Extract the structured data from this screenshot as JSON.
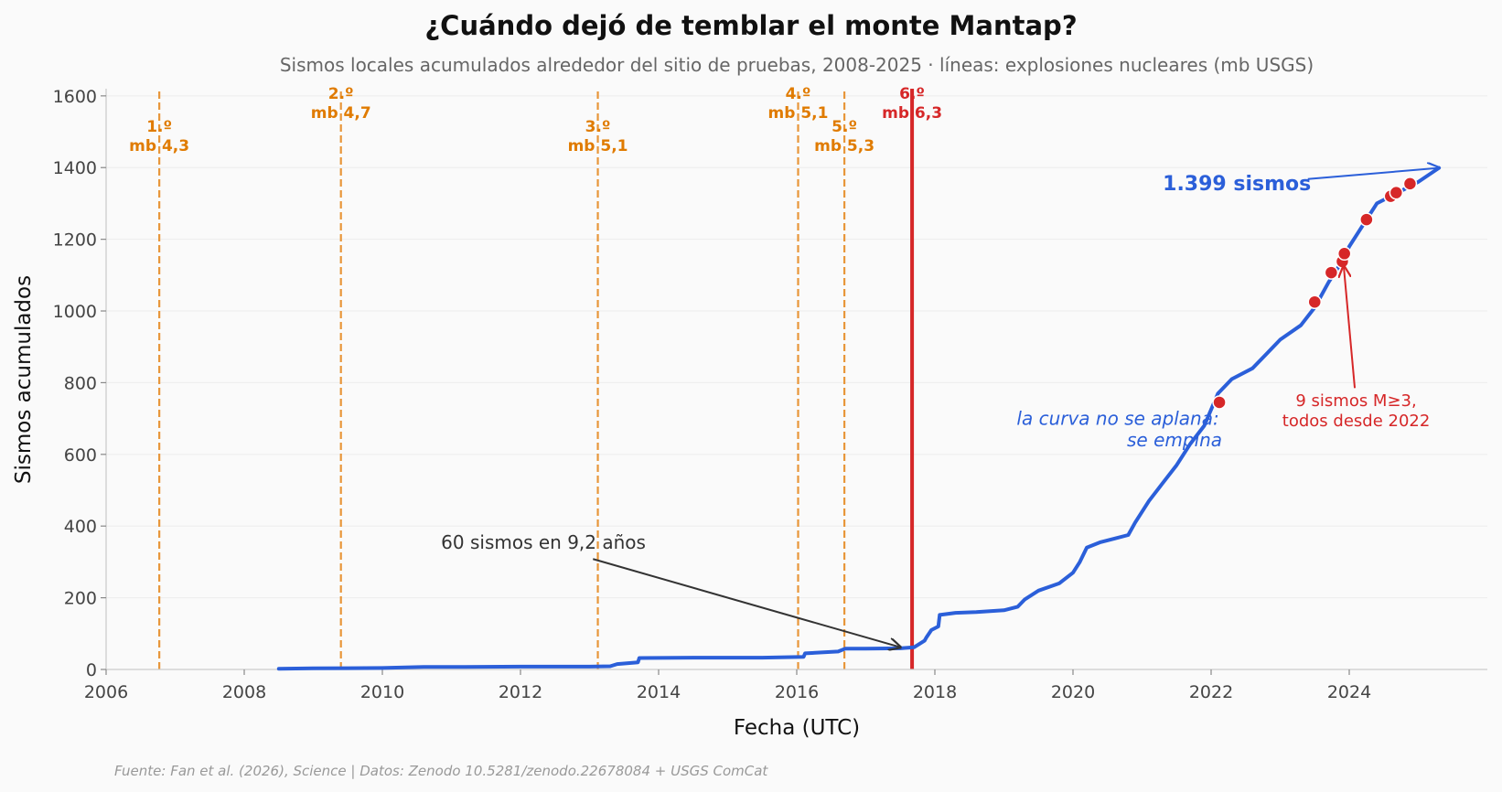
{
  "chart_data": {
    "type": "line",
    "title": "¿Cuándo dejó de temblar el monte Mantap?",
    "subtitle": "Sismos locales acumulados alrededor del sitio de pruebas, 2008-2025 · líneas: explosiones nucleares (mb USGS)",
    "xlabel": "Fecha (UTC)",
    "ylabel": "Sismos acumulados",
    "xlim": [
      2006,
      2026
    ],
    "ylim": [
      0,
      1620
    ],
    "xticks": [
      2006,
      2008,
      2010,
      2012,
      2014,
      2016,
      2018,
      2020,
      2022,
      2024
    ],
    "yticks": [
      0,
      200,
      400,
      600,
      800,
      1000,
      1200,
      1400,
      1600
    ],
    "grid": "horizontal",
    "colors": {
      "series": "#2b5fd9",
      "test": "#e8963a",
      "test_label": "#e07b00",
      "last_test": "#d62728",
      "large_events": "#d62728",
      "annotation": "#333333"
    },
    "series": [
      {
        "x": [
          2008.5,
          2009.0,
          2010.0,
          2010.6,
          2011.0,
          2012.0,
          2013.0,
          2013.3,
          2013.4,
          2013.7,
          2013.72,
          2014.5,
          2015.5,
          2016.1,
          2016.12,
          2016.6,
          2016.7,
          2017.0,
          2017.5,
          2017.7,
          2017.85,
          2017.88,
          2017.95,
          2018.05,
          2018.07,
          2018.3,
          2018.6,
          2019.0,
          2019.2,
          2019.3,
          2019.5,
          2019.8,
          2020.0,
          2020.1,
          2020.2,
          2020.4,
          2020.6,
          2020.8,
          2020.9,
          2021.1,
          2021.3,
          2021.5,
          2021.7,
          2021.9,
          2022.1,
          2022.3,
          2022.6,
          2022.8,
          2023.0,
          2023.3,
          2023.5,
          2023.7,
          2023.9,
          2024.0,
          2024.2,
          2024.4,
          2024.6,
          2024.8,
          2025.0,
          2025.3
        ],
        "values": [
          2,
          3,
          4,
          7,
          7,
          8,
          8,
          9,
          15,
          20,
          32,
          33,
          33,
          35,
          45,
          50,
          58,
          58,
          59,
          62,
          80,
          90,
          110,
          120,
          152,
          158,
          160,
          165,
          175,
          195,
          220,
          240,
          270,
          300,
          340,
          355,
          365,
          375,
          410,
          470,
          520,
          570,
          630,
          680,
          770,
          810,
          840,
          880,
          920,
          960,
          1010,
          1080,
          1140,
          1180,
          1240,
          1300,
          1320,
          1340,
          1360,
          1399
        ]
      }
    ],
    "large_events": {
      "x": [
        2022.12,
        2023.5,
        2023.74,
        2023.9,
        2023.93,
        2024.25,
        2024.6,
        2024.68,
        2024.88
      ],
      "values": [
        745,
        1025,
        1107,
        1138,
        1160,
        1255,
        1320,
        1330,
        1355
      ]
    },
    "nuclear_tests": [
      {
        "x": 2006.77,
        "label": "1.º",
        "mb": "mb 4,3",
        "row": 1,
        "last": false
      },
      {
        "x": 2009.4,
        "label": "2.º",
        "mb": "mb 4,7",
        "row": 0,
        "last": false
      },
      {
        "x": 2013.12,
        "label": "3.º",
        "mb": "mb 5,1",
        "row": 1,
        "last": false
      },
      {
        "x": 2016.02,
        "label": "4.º",
        "mb": "mb 5,1",
        "row": 0,
        "last": false
      },
      {
        "x": 2016.69,
        "label": "5.º",
        "mb": "mb 5,3",
        "row": 1,
        "last": false
      },
      {
        "x": 2017.67,
        "label": "6.º",
        "mb": "mb 6,3",
        "row": 0,
        "last": true
      }
    ],
    "annotations": {
      "sixty": {
        "text": "60 sismos en 9,2 años",
        "text_x": 2010.85,
        "text_y": 337,
        "arrow_from_x": 2013.05,
        "arrow_from_y": 308,
        "arrow_to_x": 2017.5,
        "arrow_to_y": 62
      },
      "curve_line1": "la curva no se aplana:",
      "curve_line2": "se empina",
      "curve_x": 2020.65,
      "curve_y1": 683,
      "curve_y2": 623,
      "large_line1": "9 sismos M≥3,",
      "large_line2": "todos desde 2022",
      "large_text_x": 2024.1,
      "large_text_y1": 735,
      "large_text_y2": 678,
      "large_arrow_from_x": 2024.08,
      "large_arrow_from_y": 785,
      "large_arrow_to_x": 2023.92,
      "large_arrow_to_y": 1125,
      "total_text": "1.399 sismos",
      "total_x": 2021.3,
      "total_y": 1337,
      "total_arrow_from_x": 2023.4,
      "total_arrow_from_y": 1368,
      "total_arrow_to_x": 2025.3,
      "total_arrow_to_y": 1399
    },
    "source": "Fuente: Fan et al. (2026), Science | Datos: Zenodo 10.5281/zenodo.22678084 + USGS ComCat"
  }
}
